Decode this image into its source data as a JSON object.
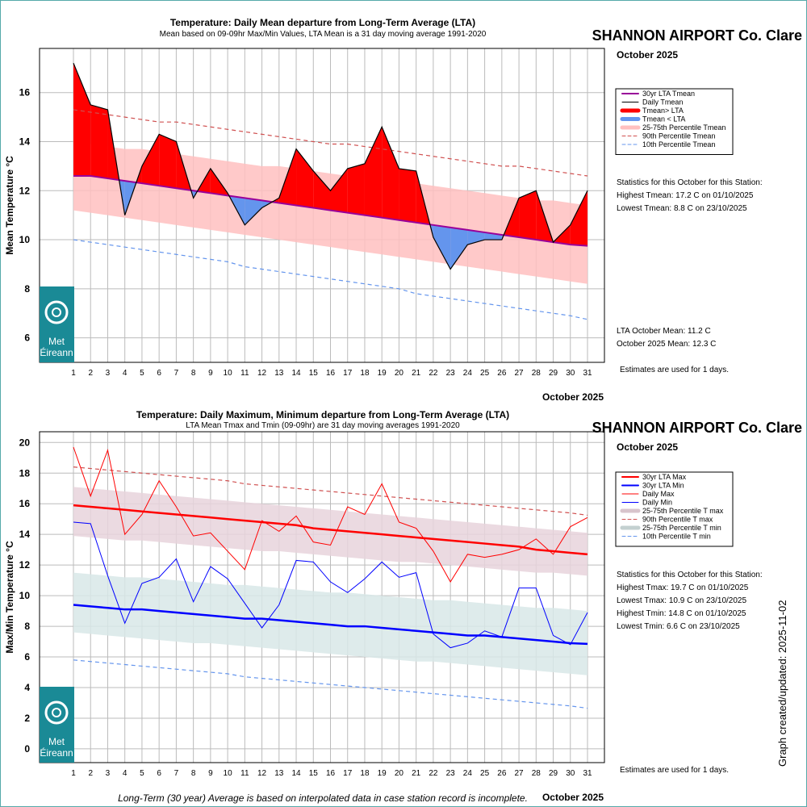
{
  "footer_note": "Long-Term (30 year) Average is based on interpolated data in case station record is incomplete.",
  "created": "Graph created/updated:  2025-11-02",
  "logo_text": [
    "Met",
    "Éireann"
  ],
  "colors": {
    "lta_mean": "#990099",
    "above": "#ff0000",
    "below": "#6495ed",
    "band_mean": "#ffc0c0",
    "p90": "#d05050",
    "p10": "#6495ed",
    "max": "#ff0000",
    "min": "#0000ff",
    "band_max": "#e8d4dc",
    "band_min": "#d8e8e8",
    "logo": "#1a8a96"
  },
  "chart_data": [
    {
      "type": "line",
      "title": "Temperature: Daily Mean departure from Long-Term Average (LTA)",
      "subtitle": "Mean based on 09-09hr Max/Min Values, LTA Mean is a 31 day moving average 1991-2020",
      "station": "SHANNON AIRPORT Co. Clare",
      "period": "October 2025",
      "xlabel": "October 2025",
      "ylabel": "Mean Temperature °C",
      "ylim": [
        5,
        17.8
      ],
      "yticks": [
        6,
        8,
        10,
        12,
        14,
        16
      ],
      "x": [
        1,
        2,
        3,
        4,
        5,
        6,
        7,
        8,
        9,
        10,
        11,
        12,
        13,
        14,
        15,
        16,
        17,
        18,
        19,
        20,
        21,
        22,
        23,
        24,
        25,
        26,
        27,
        28,
        29,
        30,
        31
      ],
      "grid": true,
      "legend_position": "right",
      "legend": [
        "30yr LTA Tmean",
        "Daily Tmean",
        "Tmean> LTA",
        "Tmean < LTA",
        "25-75th Percentile Tmean",
        "90th Percentile Tmean",
        "10th Percentile Tmean"
      ],
      "series": {
        "daily": [
          17.2,
          15.5,
          15.3,
          11.0,
          13.0,
          14.3,
          14.0,
          11.7,
          12.9,
          11.9,
          10.6,
          11.3,
          11.7,
          13.7,
          12.8,
          12.0,
          12.9,
          13.1,
          14.6,
          12.9,
          12.8,
          10.1,
          8.8,
          9.8,
          10.0,
          10.0,
          11.7,
          12.0,
          9.9,
          10.6,
          12.0
        ],
        "lta": [
          12.6,
          12.6,
          12.5,
          12.4,
          12.3,
          12.2,
          12.1,
          12.0,
          11.9,
          11.8,
          11.7,
          11.6,
          11.5,
          11.4,
          11.3,
          11.2,
          11.1,
          11.0,
          10.9,
          10.8,
          10.7,
          10.6,
          10.5,
          10.4,
          10.3,
          10.2,
          10.1,
          10.0,
          9.9,
          9.8,
          9.75
        ],
        "p90": [
          15.3,
          15.2,
          15.1,
          15.0,
          14.9,
          14.8,
          14.8,
          14.7,
          14.6,
          14.5,
          14.4,
          14.3,
          14.2,
          14.1,
          14.0,
          13.9,
          13.9,
          13.8,
          13.7,
          13.6,
          13.5,
          13.4,
          13.3,
          13.2,
          13.1,
          13.0,
          13.0,
          12.9,
          12.8,
          12.7,
          12.6
        ],
        "p10": [
          10.0,
          9.9,
          9.8,
          9.7,
          9.6,
          9.5,
          9.4,
          9.3,
          9.2,
          9.1,
          8.9,
          8.8,
          8.7,
          8.6,
          8.5,
          8.4,
          8.3,
          8.2,
          8.1,
          8.0,
          7.8,
          7.7,
          7.6,
          7.5,
          7.4,
          7.3,
          7.2,
          7.1,
          7.0,
          6.9,
          6.75
        ],
        "p25": [
          11.2,
          11.1,
          11.0,
          10.9,
          10.8,
          10.7,
          10.6,
          10.5,
          10.4,
          10.3,
          10.2,
          10.1,
          10.0,
          9.9,
          9.8,
          9.7,
          9.6,
          9.5,
          9.4,
          9.3,
          9.2,
          9.1,
          9.0,
          8.9,
          8.8,
          8.7,
          8.6,
          8.5,
          8.4,
          8.3,
          8.2
        ],
        "p75": [
          14.0,
          13.9,
          13.8,
          13.7,
          13.7,
          13.6,
          13.5,
          13.4,
          13.3,
          13.2,
          13.1,
          13.0,
          13.0,
          12.9,
          12.8,
          12.7,
          12.6,
          12.5,
          12.4,
          12.3,
          12.3,
          12.2,
          12.1,
          12.0,
          11.9,
          11.8,
          11.7,
          11.6,
          11.6,
          11.5,
          11.4
        ]
      },
      "stats_title": "Statistics for this October for this Station:",
      "stats": [
        "Highest Tmean: 17.2 C on 01/10/2025",
        "Lowest Tmean: 8.8 C on 23/10/2025"
      ],
      "means": [
        "LTA October Mean: 11.2 C",
        "October 2025 Mean: 12.3 C"
      ],
      "estimates": "Estimates are used for 1 days."
    },
    {
      "type": "line",
      "title": "Temperature: Daily Maximum, Minimum departure from Long-Term Average (LTA)",
      "subtitle": "LTA Mean Tmax and Tmin (09-09hr) are 31 day moving averages 1991-2020",
      "station": "SHANNON AIRPORT Co. Clare",
      "period": "October 2025",
      "xlabel": "October 2025",
      "ylabel": "Max/Min Temperature °C",
      "ylim": [
        -0.9,
        20.7
      ],
      "yticks": [
        0,
        2,
        4,
        6,
        8,
        10,
        12,
        14,
        16,
        18,
        20
      ],
      "x": [
        1,
        2,
        3,
        4,
        5,
        6,
        7,
        8,
        9,
        10,
        11,
        12,
        13,
        14,
        15,
        16,
        17,
        18,
        19,
        20,
        21,
        22,
        23,
        24,
        25,
        26,
        27,
        28,
        29,
        30,
        31
      ],
      "grid": true,
      "legend_position": "right",
      "legend": [
        "30yr LTA Max",
        "30yr LTA Min",
        "Daily Max",
        "Daily Min",
        "25-75th Percentile T max",
        "90th Percentile T max",
        "25-75th Percentile T min",
        "10th Percentile T min"
      ],
      "series": {
        "max": [
          19.7,
          16.5,
          19.5,
          14.0,
          15.3,
          17.5,
          15.8,
          13.9,
          14.1,
          12.9,
          11.7,
          14.9,
          14.2,
          15.2,
          13.5,
          13.3,
          15.8,
          15.3,
          17.3,
          14.8,
          14.4,
          12.9,
          10.9,
          12.7,
          12.5,
          12.7,
          13.0,
          13.7,
          12.7,
          14.5,
          15.1
        ],
        "min": [
          14.8,
          14.7,
          11.3,
          8.2,
          10.8,
          11.2,
          12.4,
          9.6,
          11.9,
          11.1,
          9.5,
          7.9,
          9.4,
          12.3,
          12.2,
          10.9,
          10.2,
          11.1,
          12.2,
          11.2,
          11.5,
          7.5,
          6.6,
          6.9,
          7.7,
          7.3,
          10.5,
          10.5,
          7.4,
          6.8,
          8.9
        ],
        "lta_max": [
          15.9,
          15.8,
          15.7,
          15.6,
          15.5,
          15.4,
          15.3,
          15.2,
          15.1,
          15.0,
          14.9,
          14.8,
          14.7,
          14.6,
          14.4,
          14.3,
          14.2,
          14.1,
          14.0,
          13.9,
          13.8,
          13.7,
          13.6,
          13.5,
          13.4,
          13.3,
          13.2,
          13.0,
          12.9,
          12.8,
          12.7
        ],
        "lta_min": [
          9.4,
          9.3,
          9.2,
          9.1,
          9.1,
          9.0,
          8.9,
          8.8,
          8.7,
          8.6,
          8.5,
          8.5,
          8.4,
          8.3,
          8.2,
          8.1,
          8.0,
          8.0,
          7.9,
          7.8,
          7.7,
          7.6,
          7.5,
          7.4,
          7.4,
          7.3,
          7.2,
          7.1,
          7.0,
          6.9,
          6.85
        ],
        "p90_max": [
          18.4,
          18.3,
          18.2,
          18.1,
          18.0,
          17.9,
          17.8,
          17.7,
          17.6,
          17.5,
          17.3,
          17.2,
          17.1,
          17.0,
          16.9,
          16.8,
          16.7,
          16.6,
          16.5,
          16.4,
          16.3,
          16.2,
          16.1,
          16.0,
          15.9,
          15.8,
          15.7,
          15.6,
          15.5,
          15.4,
          15.25
        ],
        "p10_min": [
          5.8,
          5.7,
          5.6,
          5.5,
          5.4,
          5.3,
          5.2,
          5.1,
          5.0,
          4.9,
          4.7,
          4.6,
          4.5,
          4.4,
          4.3,
          4.2,
          4.1,
          4.0,
          3.9,
          3.8,
          3.7,
          3.6,
          3.5,
          3.4,
          3.3,
          3.2,
          3.1,
          3.0,
          2.9,
          2.8,
          2.65
        ],
        "p25_max": [
          13.9,
          13.8,
          13.7,
          13.6,
          13.6,
          13.5,
          13.4,
          13.3,
          13.2,
          13.1,
          13.0,
          12.9,
          12.9,
          12.8,
          12.7,
          12.6,
          12.5,
          12.4,
          12.3,
          12.2,
          12.2,
          12.1,
          12.0,
          11.9,
          11.8,
          11.7,
          11.6,
          11.5,
          11.5,
          11.4,
          11.3
        ],
        "p75_max": [
          17.1,
          17.0,
          16.9,
          16.8,
          16.7,
          16.6,
          16.5,
          16.4,
          16.3,
          16.2,
          16.1,
          16.0,
          15.9,
          15.8,
          15.7,
          15.6,
          15.5,
          15.4,
          15.3,
          15.2,
          15.1,
          15.0,
          14.9,
          14.8,
          14.7,
          14.6,
          14.5,
          14.4,
          14.3,
          14.2,
          14.1
        ],
        "p25_min": [
          7.6,
          7.5,
          7.4,
          7.3,
          7.2,
          7.1,
          7.0,
          6.9,
          6.9,
          6.8,
          6.7,
          6.6,
          6.5,
          6.4,
          6.3,
          6.2,
          6.1,
          6.0,
          5.9,
          5.8,
          5.7,
          5.7,
          5.6,
          5.5,
          5.4,
          5.3,
          5.2,
          5.1,
          5.0,
          4.9,
          4.8
        ],
        "p75_min": [
          11.5,
          11.4,
          11.3,
          11.2,
          11.2,
          11.1,
          11.0,
          10.9,
          10.8,
          10.7,
          10.7,
          10.6,
          10.5,
          10.4,
          10.3,
          10.2,
          10.2,
          10.1,
          10.0,
          9.9,
          9.8,
          9.7,
          9.7,
          9.6,
          9.5,
          9.4,
          9.3,
          9.2,
          9.2,
          9.1,
          9.0
        ]
      },
      "stats_title": "Statistics for this October for this Station:",
      "stats": [
        "Highest Tmax: 19.7 C on 01/10/2025",
        "Lowest Tmax: 10.9 C on 23/10/2025",
        "Highest Tmin: 14.8 C on 01/10/2025",
        "Lowest Tmin: 6.6 C on 23/10/2025"
      ],
      "estimates": "Estimates are used for 1 days."
    }
  ]
}
